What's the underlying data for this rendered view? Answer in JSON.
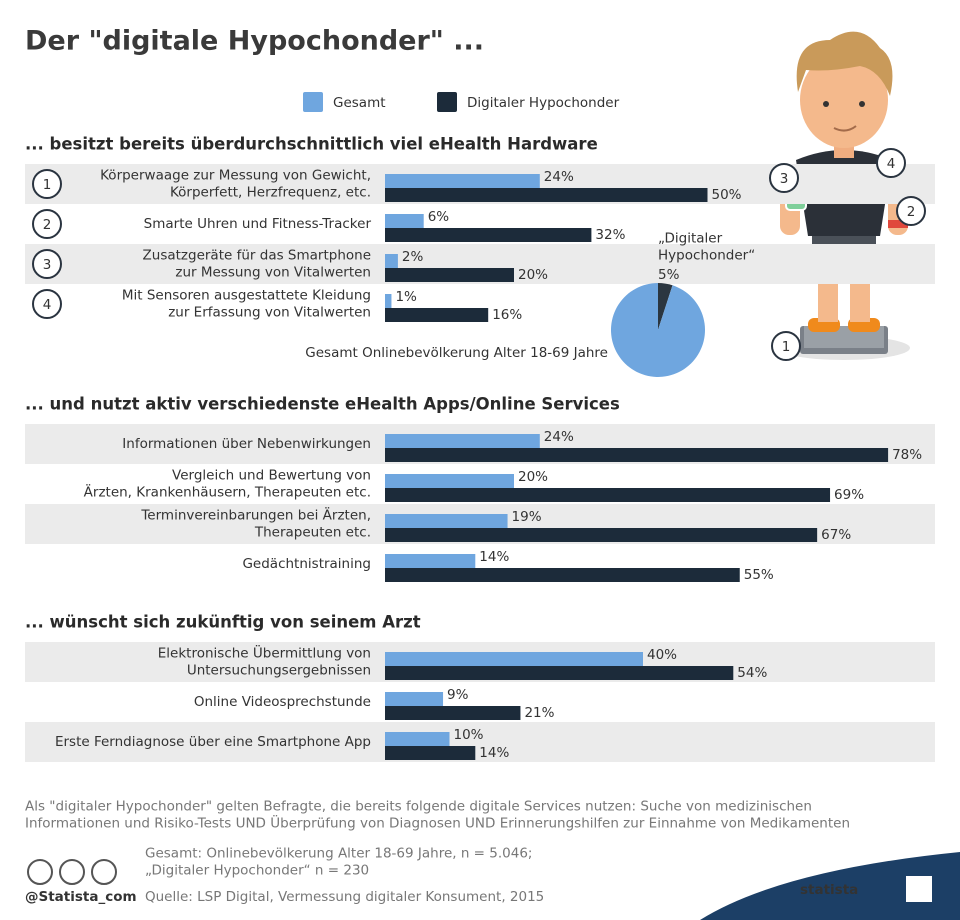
{
  "title": "Der \"digitale Hypochonder\" ...",
  "chart_data": [
    {
      "type": "bar",
      "title": "... besitzt bereits überdurchschnittlich viel eHealth Hardware",
      "markers": [
        "1",
        "2",
        "3",
        "4"
      ],
      "categories": [
        "Körperwaage zur Messung von Gewicht,\nKörperfett, Herzfrequenz, etc.",
        "Smarte Uhren und Fitness-Tracker",
        "Zusatzgeräte für das Smartphone\nzur Messung von Vitalwerten",
        "Mit Sensoren ausgestattete Kleidung\nzur Erfassung von Vitalwerten"
      ],
      "series": [
        {
          "name": "Gesamt",
          "color": "#6fa6df",
          "values": [
            24,
            6,
            2,
            1
          ],
          "value_labels": [
            "24%",
            "6%",
            "2%",
            "1%"
          ]
        },
        {
          "name": "Digitaler Hypochonder",
          "color": "#1c2b3a",
          "values": [
            50,
            32,
            20,
            16
          ],
          "value_labels": [
            "50%",
            "32%",
            "20%",
            "16%"
          ]
        }
      ]
    },
    {
      "type": "pie",
      "title": "Gesamt Onlinebevölkerung Alter 18-69 Jahre",
      "categories": [
        "„Digitaler\nHypochonder“",
        null
      ],
      "values": [
        5,
        95
      ],
      "value_labels": [
        "5%",
        null
      ],
      "colors": [
        "#2b3640",
        "#6fa6df"
      ]
    },
    {
      "type": "bar",
      "title": "... und nutzt aktiv verschiedenste eHealth Apps/Online Services",
      "categories": [
        "Informationen über Nebenwirkungen",
        "Vergleich und Bewertung von\nÄrzten, Krankenhäusern, Therapeuten etc.",
        "Terminvereinbarungen bei Ärzten,\nTherapeuten etc.",
        "Gedächtnistraining"
      ],
      "series": [
        {
          "name": "Gesamt",
          "color": "#6fa6df",
          "values": [
            24,
            20,
            19,
            14
          ],
          "value_labels": [
            "24%",
            "20%",
            "19%",
            "14%"
          ]
        },
        {
          "name": "Digitaler Hypochonder",
          "color": "#1c2b3a",
          "values": [
            78,
            69,
            67,
            55
          ],
          "value_labels": [
            "78%",
            "69%",
            "67%",
            "55%"
          ]
        }
      ]
    },
    {
      "type": "bar",
      "title": "... wünscht sich zukünftig von seinem Arzt",
      "categories": [
        "Elektronische Übermittlung von\nUntersuchungsergebnissen",
        "Online Videosprechstunde",
        "Erste Ferndiagnose über eine Smartphone App"
      ],
      "series": [
        {
          "name": "Gesamt",
          "color": "#6fa6df",
          "values": [
            40,
            9,
            10
          ],
          "value_labels": [
            "40%",
            "9%",
            "10%"
          ]
        },
        {
          "name": "Digitaler Hypochonder",
          "color": "#1c2b3a",
          "values": [
            54,
            21,
            14
          ],
          "value_labels": [
            "54%",
            "21%",
            "14%"
          ]
        }
      ]
    }
  ],
  "note": "Als \"digitaler Hypochonder\" gelten Befragte, die bereits folgende digitale Services nutzen: Suche von medizinischen\nInformationen und Risiko-Tests UND Überprüfung von Diagnosen UND Erinnerungshilfen zur Einnahme von Medikamenten",
  "sample": "Gesamt: Onlinebevölkerung Alter 18-69 Jahre, n = 5.046;\n„Digitaler Hypochonder“ n = 230",
  "source": "Quelle: LSP Digital, Vermessung digitaler Konsument, 2015",
  "credit": "@Statista_com",
  "brand": "statista"
}
